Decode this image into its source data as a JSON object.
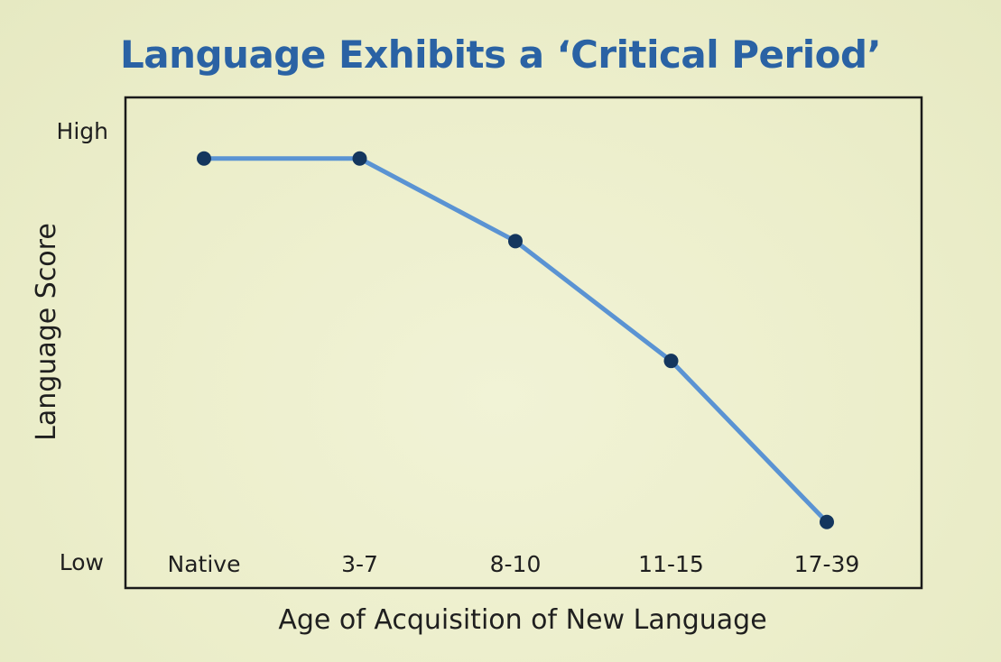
{
  "chart_data": {
    "type": "line",
    "title": "Language Exhibits a ‘Critical Period’",
    "xlabel": "Age of Acquisition of New Language",
    "ylabel": "Language Score",
    "categories": [
      "Native",
      "3-7",
      "8-10",
      "11-15",
      "17-39"
    ],
    "y_tick_labels": {
      "high": "High",
      "low": "Low"
    },
    "ylim": [
      0,
      100
    ],
    "series": [
      {
        "values": [
          97,
          97,
          77,
          48,
          9
        ]
      }
    ],
    "grid": false,
    "colors": {
      "line": "#5a93d3",
      "marker": "#14365e",
      "frame": "#1a1a1a",
      "title": "#2a62a4"
    }
  }
}
